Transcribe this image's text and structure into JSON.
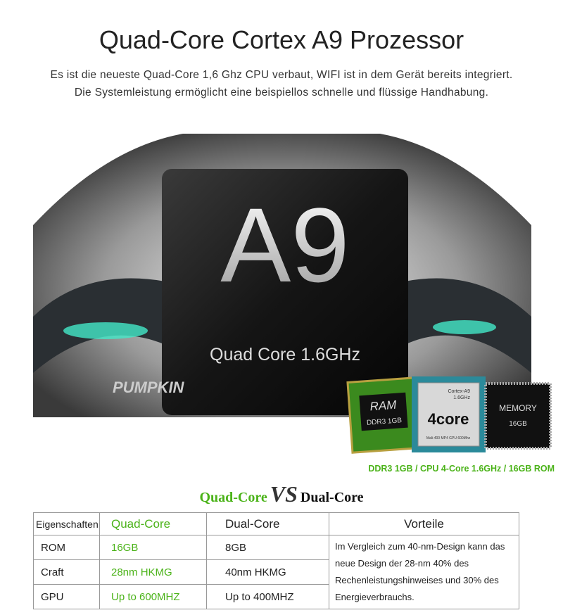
{
  "header": {
    "title": "Quad-Core Cortex A9 Prozessor",
    "lines": [
      "Es ist die neueste Quad-Core 1,6 Ghz CPU verbaut, WIFI ist in dem Gerät bereits integriert.",
      "Die Systemleistung ermöglicht eine beispiellos schnelle und flüssige Handhabung."
    ]
  },
  "hero": {
    "chip_label": "A9",
    "chip_sub": "Quad Core 1.6GHz",
    "brand": "PUMPKIN"
  },
  "components": {
    "ram": {
      "label": "RAM",
      "sub": "DDR3 1GB"
    },
    "cpu": {
      "top": "Cortex-A9",
      "freq": "1.6GHz",
      "label": "4core",
      "gpu": "Mali-400 MP4 GPU 600Mhz"
    },
    "memory": {
      "label": "MEMORY",
      "sub": "16GB"
    },
    "caption": "DDR3 1GB / CPU 4-Core 1.6GHz / 16GB ROM"
  },
  "comparison": {
    "left": "Quad-Core",
    "vs": "VS",
    "right": "Dual-Core"
  },
  "table": {
    "header": [
      "Eigenschaften",
      "Quad-Core",
      "Dual-Core",
      "Vorteile"
    ],
    "rows": [
      [
        "ROM",
        "16GB",
        "8GB"
      ],
      [
        "Craft",
        "28nm HKMG",
        "40nm HKMG"
      ],
      [
        "GPU",
        "Up to 600MHZ",
        "Up to 400MHZ"
      ]
    ],
    "note": "Im Vergleich zum 40-nm-Design kann das neue Design der 28-nm 40% des Rechenleistungshinweises und 30% des Energieverbrauchs."
  }
}
